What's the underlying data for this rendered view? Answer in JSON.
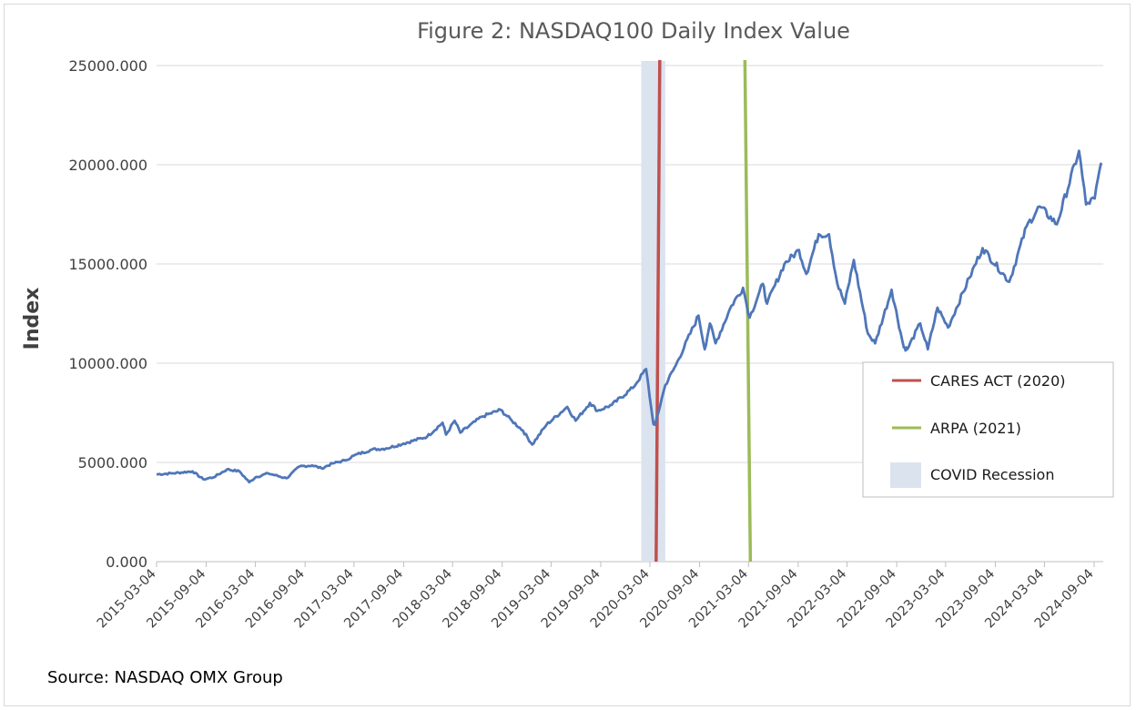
{
  "chart_data": {
    "type": "line",
    "title": "Figure 2: NASDAQ100 Daily Index Value",
    "ylabel": "Index",
    "xlabel": "",
    "ylim": [
      0,
      25000
    ],
    "yticks": [
      "0.000",
      "5000.000",
      "10000.000",
      "15000.000",
      "20000.000",
      "25000.000"
    ],
    "xticks": [
      "2015-03-04",
      "2015-09-04",
      "2016-03-04",
      "2016-09-04",
      "2017-03-04",
      "2017-09-04",
      "2018-03-04",
      "2018-09-04",
      "2019-03-04",
      "2019-09-04",
      "2020-03-04",
      "2020-09-04",
      "2021-03-04",
      "2021-09-04",
      "2022-03-04",
      "2022-09-04",
      "2023-03-04",
      "2023-09-04",
      "2024-03-04",
      "2024-09-04"
    ],
    "grid": true,
    "legend_position": "right",
    "series": [
      {
        "name": "",
        "color": "#4f76b8",
        "points": [
          [
            "2015-03-04",
            4400
          ],
          [
            "2015-05-01",
            4450
          ],
          [
            "2015-07-15",
            4550
          ],
          [
            "2015-08-24",
            4150
          ],
          [
            "2015-10-01",
            4250
          ],
          [
            "2015-11-20",
            4650
          ],
          [
            "2016-01-05",
            4550
          ],
          [
            "2016-02-10",
            4000
          ],
          [
            "2016-03-04",
            4250
          ],
          [
            "2016-04-20",
            4450
          ],
          [
            "2016-06-27",
            4200
          ],
          [
            "2016-08-15",
            4800
          ],
          [
            "2016-09-30",
            4850
          ],
          [
            "2016-11-04",
            4700
          ],
          [
            "2016-12-15",
            4950
          ],
          [
            "2017-01-31",
            5100
          ],
          [
            "2017-03-04",
            5350
          ],
          [
            "2017-05-10",
            5650
          ],
          [
            "2017-06-30",
            5700
          ],
          [
            "2017-09-04",
            5950
          ],
          [
            "2017-11-30",
            6300
          ],
          [
            "2018-01-26",
            7000
          ],
          [
            "2018-02-08",
            6400
          ],
          [
            "2018-03-12",
            7100
          ],
          [
            "2018-04-02",
            6500
          ],
          [
            "2018-06-20",
            7300
          ],
          [
            "2018-08-29",
            7650
          ],
          [
            "2018-10-10",
            7100
          ],
          [
            "2018-11-20",
            6600
          ],
          [
            "2018-12-24",
            5900
          ],
          [
            "2019-02-15",
            6900
          ],
          [
            "2019-05-03",
            7800
          ],
          [
            "2019-06-03",
            7100
          ],
          [
            "2019-07-26",
            8000
          ],
          [
            "2019-08-23",
            7600
          ],
          [
            "2019-10-15",
            7900
          ],
          [
            "2019-12-31",
            8750
          ],
          [
            "2020-02-19",
            9700
          ],
          [
            "2020-03-16",
            7000
          ],
          [
            "2020-03-23",
            6900
          ],
          [
            "2020-04-30",
            8900
          ],
          [
            "2020-06-08",
            9900
          ],
          [
            "2020-08-31",
            12400
          ],
          [
            "2020-09-23",
            10700
          ],
          [
            "2020-10-12",
            12000
          ],
          [
            "2020-11-02",
            11000
          ],
          [
            "2020-12-31",
            12900
          ],
          [
            "2021-02-12",
            13800
          ],
          [
            "2021-03-08",
            12300
          ],
          [
            "2021-04-26",
            14000
          ],
          [
            "2021-05-12",
            13000
          ],
          [
            "2021-07-15",
            15000
          ],
          [
            "2021-09-07",
            15700
          ],
          [
            "2021-10-04",
            14500
          ],
          [
            "2021-11-19",
            16500
          ],
          [
            "2021-12-27",
            16500
          ],
          [
            "2022-01-27",
            14000
          ],
          [
            "2022-02-24",
            13000
          ],
          [
            "2022-03-29",
            15200
          ],
          [
            "2022-05-20",
            11500
          ],
          [
            "2022-06-16",
            11000
          ],
          [
            "2022-08-16",
            13700
          ],
          [
            "2022-09-30",
            10800
          ],
          [
            "2022-10-13",
            10700
          ],
          [
            "2022-11-30",
            12000
          ],
          [
            "2022-12-28",
            10700
          ],
          [
            "2023-02-02",
            12800
          ],
          [
            "2023-03-13",
            11800
          ],
          [
            "2023-05-31",
            14300
          ],
          [
            "2023-07-19",
            15800
          ],
          [
            "2023-10-26",
            14100
          ],
          [
            "2023-12-29",
            16900
          ],
          [
            "2024-02-15",
            17900
          ],
          [
            "2024-04-19",
            17000
          ],
          [
            "2024-07-10",
            20700
          ],
          [
            "2024-08-05",
            18000
          ],
          [
            "2024-09-06",
            18300
          ],
          [
            "2024-09-30",
            20100
          ]
        ]
      }
    ],
    "reference_lines": [
      {
        "name": "CARES ACT (2020)",
        "date": "2020-03-27",
        "color": "#c0504d"
      },
      {
        "name": "ARPA (2021)",
        "date": "2021-03-11",
        "color": "#9bbb59"
      }
    ],
    "shaded_regions": [
      {
        "name": "COVID Recession",
        "start": "2020-02-01",
        "end": "2020-04-30",
        "color": "#dbe3ef"
      }
    ],
    "source_note": "Source: NASDAQ OMX Group"
  }
}
